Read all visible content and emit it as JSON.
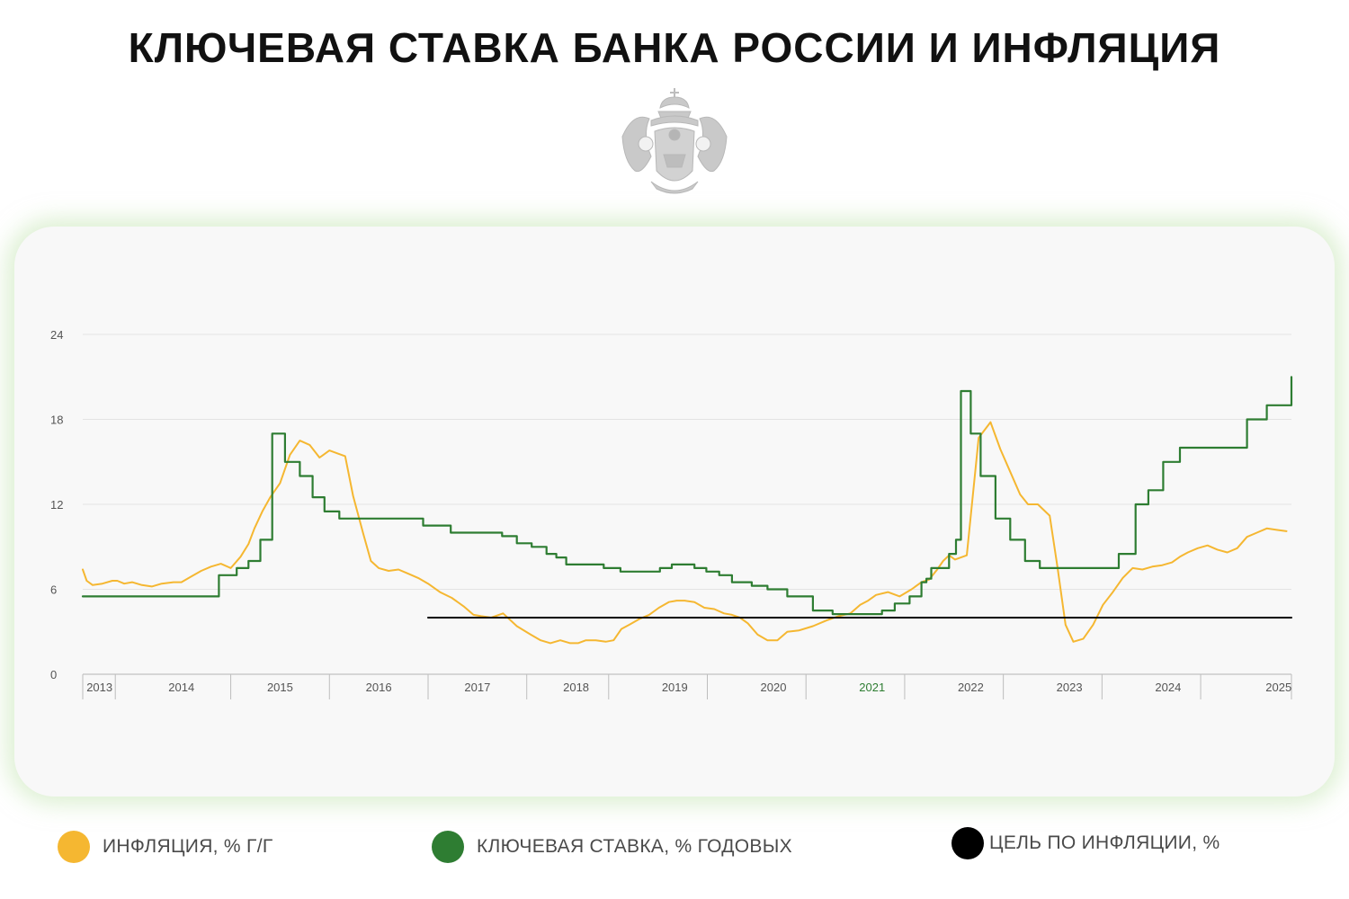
{
  "page": {
    "title": "КЛЮЧЕВАЯ СТАВКА БАНКА РОССИИ И ИНФЛЯЦИЯ",
    "logo_icon": "coat-of-arms-icon"
  },
  "legend": [
    {
      "label": "ИНФЛЯЦИЯ, % Г/Г",
      "color": "#f5b731"
    },
    {
      "label": "КЛЮЧЕВАЯ СТАВКА, % ГОДОВЫХ",
      "color": "#2e7d32"
    },
    {
      "label": "ЦЕЛЬ ПО ИНФЛЯЦИИ, %",
      "color": "#000000"
    }
  ],
  "chart_data": {
    "type": "line",
    "title": "КЛЮЧЕВАЯ СТАВКА БАНКА РОССИИ И ИНФЛЯЦИЯ",
    "xlabel": "",
    "ylabel": "",
    "ylim": [
      0,
      24
    ],
    "xlim": [
      2013.0,
      2025.25
    ],
    "yticks": [
      0,
      6,
      12,
      18,
      24
    ],
    "year_labels": [
      "2013",
      "2014",
      "2015",
      "2016",
      "2017",
      "2018",
      "2019",
      "2020",
      "2021",
      "2022",
      "2023",
      "2024",
      "2025"
    ],
    "year_label_centers": [
      2013.17,
      2014.0,
      2015.0,
      2016.0,
      2017.0,
      2018.0,
      2019.0,
      2020.0,
      2021.0,
      2022.0,
      2023.0,
      2024.0,
      2025.12
    ],
    "year_boundaries": [
      2013.0,
      2013.33,
      2014.5,
      2015.5,
      2016.5,
      2017.5,
      2018.33,
      2019.33,
      2020.33,
      2021.33,
      2022.33,
      2023.33,
      2024.33,
      2025.25
    ],
    "highlight_label": "2021",
    "grid": true,
    "legend_position": "bottom",
    "series": [
      {
        "name": "ИНФЛЯЦИЯ, % Г/Г",
        "color": "#f5b731",
        "kind": "line",
        "x": [
          2013.0,
          2013.04,
          2013.1,
          2013.2,
          2013.3,
          2013.35,
          2013.42,
          2013.5,
          2013.6,
          2013.7,
          2013.8,
          2013.92,
          2014.0,
          2014.1,
          2014.2,
          2014.3,
          2014.4,
          2014.5,
          2014.6,
          2014.68,
          2014.74,
          2014.82,
          2014.9,
          2015.0,
          2015.1,
          2015.2,
          2015.3,
          2015.4,
          2015.5,
          2015.58,
          2015.66,
          2015.74,
          2015.84,
          2015.92,
          2016.0,
          2016.1,
          2016.2,
          2016.3,
          2016.4,
          2016.5,
          2016.62,
          2016.74,
          2016.86,
          2016.96,
          2017.04,
          2017.14,
          2017.26,
          2017.4,
          2017.54,
          2017.64,
          2017.74,
          2017.84,
          2017.94,
          2018.02,
          2018.1,
          2018.2,
          2018.3,
          2018.38,
          2018.46,
          2018.54,
          2018.64,
          2018.74,
          2018.84,
          2018.94,
          2019.02,
          2019.1,
          2019.2,
          2019.3,
          2019.4,
          2019.5,
          2019.58,
          2019.66,
          2019.74,
          2019.84,
          2019.94,
          2020.04,
          2020.14,
          2020.26,
          2020.4,
          2020.54,
          2020.66,
          2020.78,
          2020.88,
          2020.96,
          2021.04,
          2021.16,
          2021.28,
          2021.4,
          2021.5,
          2021.58,
          2021.66,
          2021.72,
          2021.78,
          2021.84,
          2021.96,
          2022.08,
          2022.2,
          2022.3,
          2022.4,
          2022.5,
          2022.58,
          2022.68,
          2022.8,
          2022.88,
          2022.96,
          2023.04,
          2023.14,
          2023.24,
          2023.34,
          2023.44,
          2023.54,
          2023.64,
          2023.74,
          2023.84,
          2023.94,
          2024.04,
          2024.12,
          2024.2,
          2024.3,
          2024.4,
          2024.5,
          2024.6,
          2024.7,
          2024.8,
          2024.9,
          2025.0,
          2025.1,
          2025.2
        ],
        "y": [
          7.4,
          6.6,
          6.3,
          6.4,
          6.6,
          6.6,
          6.4,
          6.5,
          6.3,
          6.2,
          6.4,
          6.5,
          6.5,
          6.9,
          7.3,
          7.6,
          7.8,
          7.5,
          8.3,
          9.2,
          10.3,
          11.5,
          12.5,
          13.5,
          15.5,
          16.5,
          16.2,
          15.3,
          15.8,
          15.6,
          15.4,
          12.6,
          10.0,
          8.0,
          7.5,
          7.3,
          7.4,
          7.1,
          6.8,
          6.4,
          5.8,
          5.4,
          4.8,
          4.2,
          4.1,
          4.0,
          4.3,
          3.4,
          2.8,
          2.4,
          2.2,
          2.4,
          2.2,
          2.2,
          2.4,
          2.4,
          2.3,
          2.4,
          3.2,
          3.5,
          3.9,
          4.2,
          4.7,
          5.1,
          5.2,
          5.2,
          5.1,
          4.7,
          4.6,
          4.3,
          4.2,
          4.0,
          3.6,
          2.8,
          2.4,
          2.4,
          3.0,
          3.1,
          3.4,
          3.8,
          4.1,
          4.3,
          4.9,
          5.2,
          5.6,
          5.8,
          5.5,
          6.0,
          6.5,
          6.7,
          7.4,
          8.0,
          8.4,
          8.1,
          8.4,
          16.7,
          17.8,
          15.9,
          14.3,
          12.7,
          12.0,
          12.0,
          11.2,
          7.5,
          3.5,
          2.3,
          2.5,
          3.5,
          4.9,
          5.8,
          6.8,
          7.5,
          7.4,
          7.6,
          7.7,
          7.9,
          8.3,
          8.6,
          8.9,
          9.1,
          8.8,
          8.6,
          8.9,
          9.7,
          10.0,
          10.3,
          10.2,
          10.1
        ]
      },
      {
        "name": "КЛЮЧЕВАЯ СТАВКА, % ГОДОВЫХ",
        "color": "#2e7d32",
        "kind": "step",
        "x": [
          2013.0,
          2013.45,
          2013.6,
          2013.75,
          2014.0,
          2014.3,
          2014.38,
          2014.45,
          2014.56,
          2014.68,
          2014.8,
          2014.92,
          2015.05,
          2015.2,
          2015.33,
          2015.45,
          2015.6,
          2016.15,
          2016.45,
          2016.73,
          2016.85,
          2016.95,
          2017.25,
          2017.4,
          2017.55,
          2017.7,
          2017.8,
          2017.9,
          2018.28,
          2018.45,
          2018.85,
          2018.97,
          2019.1,
          2019.2,
          2019.32,
          2019.45,
          2019.58,
          2019.78,
          2019.94,
          2020.14,
          2020.4,
          2020.6,
          2020.77,
          2020.9,
          2021.0,
          2021.1,
          2021.23,
          2021.38,
          2021.5,
          2021.55,
          2021.6,
          2021.78,
          2021.85,
          2021.9,
          2021.96,
          2022.0,
          2022.1,
          2022.25,
          2022.4,
          2022.55,
          2022.7,
          2022.95,
          2023.05,
          2023.1,
          2023.25,
          2023.37,
          2023.5,
          2023.67,
          2023.8,
          2023.95,
          2024.12,
          2024.25,
          2024.38,
          2024.5,
          2024.8,
          2025.0,
          2025.25
        ],
        "y": [
          5.5,
          5.5,
          5.5,
          5.5,
          5.5,
          5.5,
          7.0,
          7.0,
          7.5,
          8.0,
          9.5,
          17.0,
          15.0,
          14.0,
          12.5,
          11.5,
          11.0,
          11.0,
          10.5,
          10.0,
          10.0,
          10.0,
          9.75,
          9.25,
          9.0,
          8.5,
          8.25,
          7.75,
          7.5,
          7.25,
          7.5,
          7.75,
          7.75,
          7.5,
          7.25,
          7.0,
          6.5,
          6.25,
          6.0,
          5.5,
          4.5,
          4.25,
          4.25,
          4.25,
          4.25,
          4.5,
          5.0,
          5.5,
          6.5,
          6.75,
          7.5,
          8.5,
          9.5,
          20.0,
          20.0,
          17.0,
          14.0,
          11.0,
          9.5,
          8.0,
          7.5,
          7.5,
          7.5,
          7.5,
          7.5,
          7.5,
          8.5,
          12.0,
          13.0,
          15.0,
          16.0,
          16.0,
          16.0,
          16.0,
          18.0,
          19.0,
          21.0
        ]
      },
      {
        "name": "ЦЕЛЬ ПО ИНФЛЯЦИИ, %",
        "color": "#000000",
        "kind": "line",
        "x": [
          2016.5,
          2025.25
        ],
        "y": [
          4.0,
          4.0
        ]
      }
    ]
  }
}
